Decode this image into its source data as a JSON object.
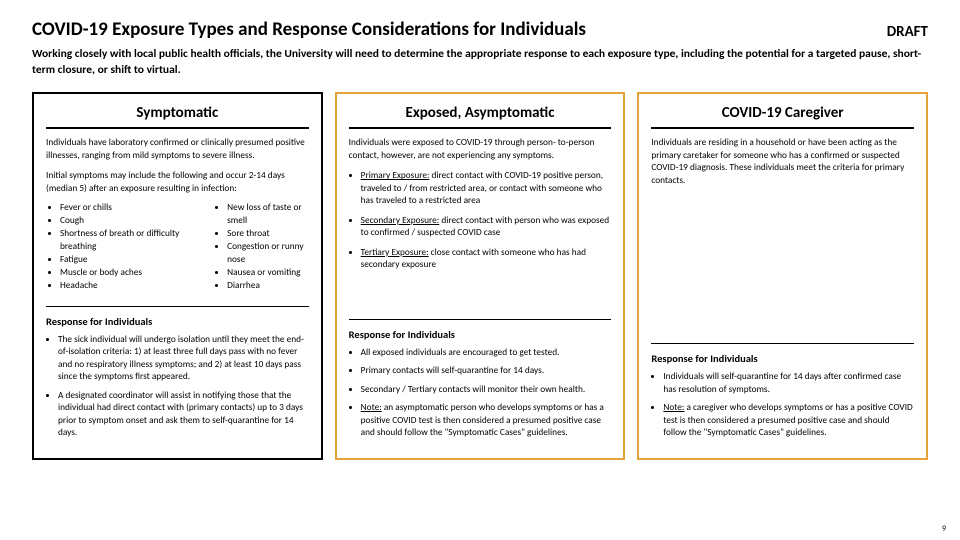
{
  "header": {
    "title": "COVID-19 Exposure Types and Response Considerations for Individuals",
    "draft": "DRAFT",
    "subtitle": "Working closely with local public health officials, the University will need to determine the appropriate response to each exposure type, including the potential for a targeted pause, short-term closure, or shift to virtual."
  },
  "colors": {
    "col1_border": "#000000",
    "col2_border": "#e5a13a",
    "col3_border": "#e5a13a"
  },
  "col1": {
    "title": "Symptomatic",
    "desc": "Individuals have laboratory confirmed or clinically presumed positive illnesses, ranging from mild symptoms to severe illness.",
    "sub": "Initial symptoms may include the following and occur 2-14 days (median 5) after an exposure resulting in infection:",
    "symptoms_left": [
      "Fever or chills",
      "Cough",
      "Shortness of breath or difficulty breathing",
      "Fatigue",
      "Muscle or body aches",
      "Headache"
    ],
    "symptoms_right": [
      "New loss of taste or smell",
      "Sore throat",
      "Congestion or runny nose",
      "Nausea or vomiting",
      "Diarrhea"
    ],
    "resp_hdr": "Response for Individuals",
    "resp": [
      "The sick individual will undergo isolation until they meet the end-of-isolation criteria: 1) at least three full days pass with no fever and no respiratory illness symptoms; and 2) at least 10 days pass since the symptoms first appeared.",
      "A designated coordinator will assist in notifying those that the individual had direct contact with (primary contacts) up to 3 days prior to symptom onset and ask them to self-quarantine for 14 days."
    ]
  },
  "col2": {
    "title": "Exposed, Asymptomatic",
    "desc": "Individuals were exposed to COVID-19 through person- to-person contact, however, are not experiencing any symptoms.",
    "exposures": [
      {
        "label": "Primary Exposure:",
        "text": " direct contact with COVID-19 positive person, traveled to / from restricted area, or contact with someone who has traveled to a restricted area"
      },
      {
        "label": "Secondary Exposure:",
        "text": " direct contact with person who was exposed to confirmed / suspected COVID case"
      },
      {
        "label": "Tertiary Exposure:",
        "text": " close contact with someone who has had secondary exposure"
      }
    ],
    "resp_hdr": "Response for Individuals",
    "resp_plain": [
      "All exposed individuals are encouraged to get tested.",
      "Primary contacts will self-quarantine for 14 days.",
      "Secondary / Tertiary contacts will monitor their own health."
    ],
    "resp_note": {
      "label": "Note:",
      "text": " an asymptomatic person who develops symptoms or has a positive COVID test is then considered a presumed positive case and should follow the \"Symptomatic Cases\" guidelines."
    }
  },
  "col3": {
    "title": "COVID-19 Caregiver",
    "desc": "Individuals are residing in a household or have been acting as the primary caretaker for someone who has a confirmed or suspected COVID-19 diagnosis. These individuals meet the criteria for primary contacts.",
    "resp_hdr": "Response for Individuals",
    "resp_plain": [
      "Individuals will self-quarantine for 14 days after confirmed case has resolution of symptoms."
    ],
    "resp_note": {
      "label": "Note:",
      "text": " a caregiver who develops symptoms or has a positive COVID test is then considered a presumed positive case and should follow the \"Symptomatic Cases\" guidelines."
    }
  },
  "page_number": "9"
}
